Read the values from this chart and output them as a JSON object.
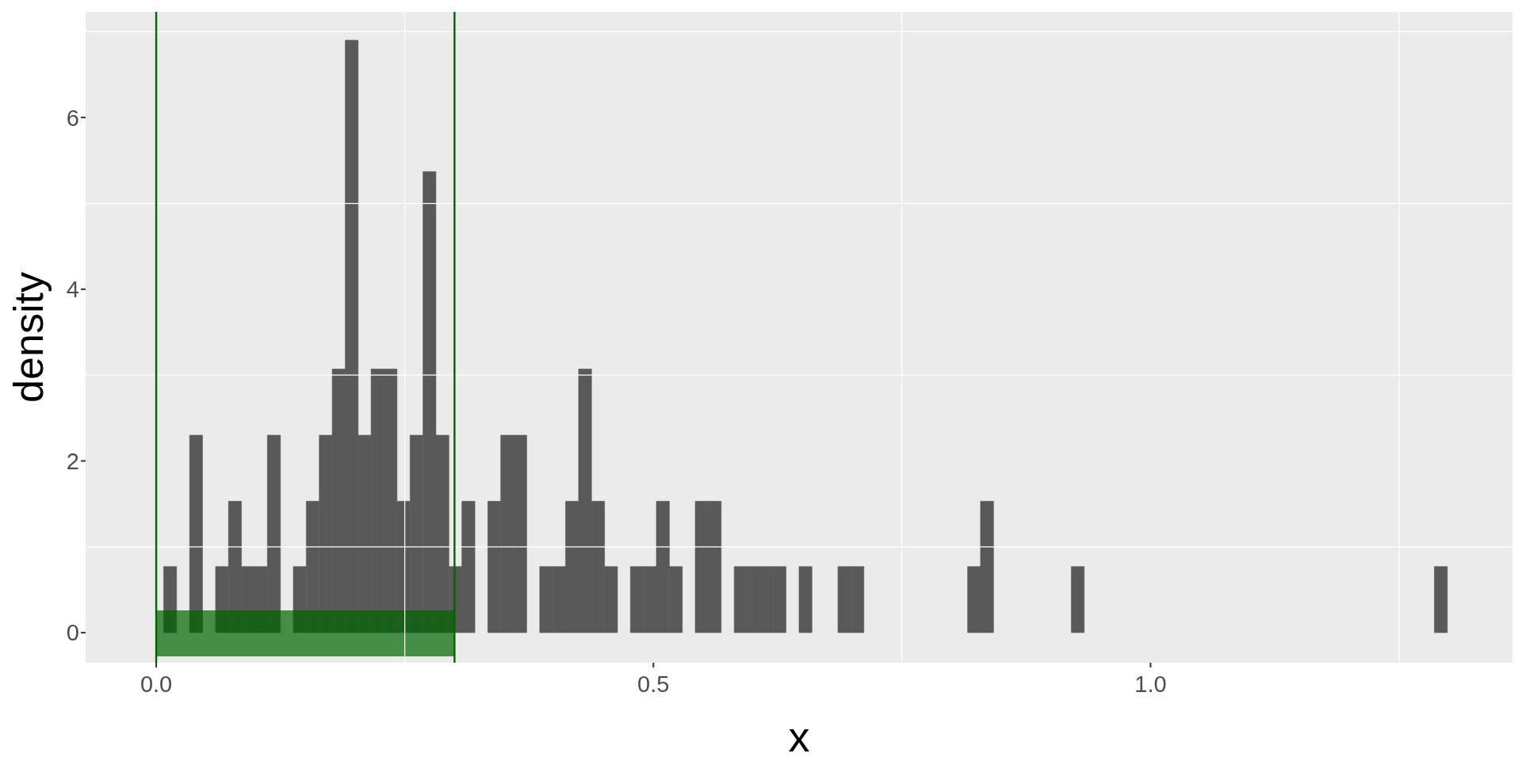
{
  "chart_data": {
    "type": "histogram",
    "xlabel": "x",
    "ylabel": "density",
    "bins": [
      0.0075,
      0.0205,
      0.0336,
      0.0466,
      0.0597,
      0.0727,
      0.0857,
      0.0988,
      0.1118,
      0.1249,
      0.1379,
      0.1509,
      0.164,
      0.177,
      0.1901,
      0.2031,
      0.2161,
      0.2292,
      0.2422,
      0.2553,
      0.2683,
      0.2813,
      0.2944,
      0.3074,
      0.3205,
      0.3335,
      0.3465,
      0.3596,
      0.3726,
      0.3857,
      0.3987,
      0.4117,
      0.4248,
      0.4378,
      0.4509,
      0.4639,
      0.4769,
      0.49,
      0.503,
      0.5161,
      0.5291,
      0.5421,
      0.5552,
      0.5682,
      0.5813,
      0.5943,
      0.6073,
      0.6204,
      0.6334,
      0.6465,
      0.6595,
      0.6725,
      0.6856,
      0.6986,
      0.7117,
      0.7247,
      0.7377,
      0.7508,
      0.7638,
      0.7769,
      0.7899,
      0.8029,
      0.816,
      0.829,
      0.8421,
      0.8551,
      0.8681,
      0.8812,
      0.8942,
      0.9073,
      0.9203,
      0.9333,
      0.9464,
      0.9594,
      0.9725,
      0.9855,
      0.9985,
      1.0116,
      1.0246,
      1.0377,
      1.0507,
      1.0637,
      1.0768,
      1.0898,
      1.1029,
      1.1159,
      1.1289,
      1.142,
      1.155,
      1.1681,
      1.1811,
      1.1941,
      1.2072,
      1.2202,
      1.2333,
      1.2463,
      1.2593,
      1.2724,
      1.2854,
      1.2985
    ],
    "values": [
      0.77,
      0,
      2.3,
      0,
      0.77,
      1.53,
      0.77,
      0.77,
      2.3,
      0,
      0.77,
      1.53,
      2.3,
      3.07,
      6.9,
      2.3,
      3.07,
      3.07,
      1.53,
      2.3,
      5.37,
      2.3,
      0.77,
      1.53,
      0,
      1.53,
      2.3,
      2.3,
      0,
      0.77,
      0.77,
      1.53,
      3.07,
      1.53,
      0.77,
      0,
      0.77,
      0.77,
      1.53,
      0.77,
      0,
      1.53,
      1.53,
      0,
      0.77,
      0.77,
      0.77,
      0.77,
      0,
      0.77,
      0,
      0,
      0.77,
      0.77,
      0,
      0,
      0,
      0,
      0,
      0,
      0,
      0,
      0.77,
      1.53,
      0,
      0,
      0,
      0,
      0,
      0,
      0.77,
      0,
      0,
      0,
      0,
      0,
      0,
      0,
      0,
      0,
      0,
      0,
      0,
      0,
      0,
      0,
      0,
      0,
      0,
      0,
      0,
      0,
      0,
      0,
      0,
      0,
      0,
      0,
      0.77
    ],
    "color": "#595959",
    "xlim": [
      -0.071,
      1.364
    ],
    "xticks": [
      {
        "value": 0,
        "label": "0.0"
      },
      {
        "value": 0.5,
        "label": "0.5"
      },
      {
        "value": 1,
        "label": "1.0"
      }
    ],
    "ylim": [
      -0.35,
      7.23
    ],
    "yticks": [
      0,
      2,
      4,
      6
    ],
    "grid": true,
    "ref_lines": [
      {
        "axis": "x",
        "value": 0,
        "color": "#006400"
      },
      {
        "axis": "x",
        "value": 0.3,
        "color": "#006400"
      }
    ],
    "bands": [
      {
        "axis": "x",
        "from": 0,
        "to": 0.3,
        "color": "#006400"
      }
    ]
  }
}
